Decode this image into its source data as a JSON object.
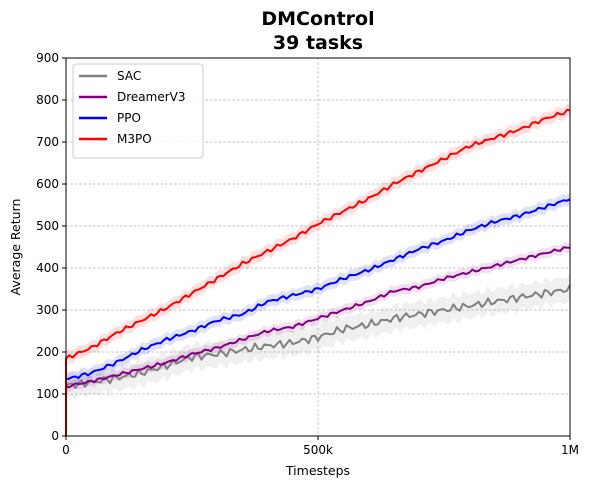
{
  "chart_data": {
    "type": "line",
    "title": "DMControl",
    "subtitle": "39 tasks",
    "xlabel": "Timesteps",
    "ylabel": "Average Return",
    "xlim": [
      0,
      1000000
    ],
    "ylim": [
      0,
      900
    ],
    "x_ticks": [
      {
        "value": 0,
        "label": "0"
      },
      {
        "value": 500000,
        "label": "500k"
      },
      {
        "value": 1000000,
        "label": "1M"
      }
    ],
    "y_ticks": [
      0,
      100,
      200,
      300,
      400,
      500,
      600,
      700,
      800,
      900
    ],
    "grid": true,
    "legend_position": "top-left",
    "x": [
      0,
      50000,
      100000,
      150000,
      200000,
      250000,
      300000,
      350000,
      400000,
      450000,
      500000,
      550000,
      600000,
      650000,
      700000,
      750000,
      800000,
      850000,
      900000,
      950000,
      1000000
    ],
    "series": [
      {
        "name": "SAC",
        "color": "#808080",
        "band": 30,
        "values": [
          120,
          128,
          138,
          150,
          168,
          188,
          195,
          205,
          215,
          222,
          235,
          255,
          265,
          280,
          290,
          300,
          310,
          320,
          330,
          340,
          350
        ]
      },
      {
        "name": "DreamerV3",
        "color": "#800080",
        "band": 12,
        "values": [
          118,
          130,
          145,
          160,
          175,
          195,
          210,
          230,
          250,
          260,
          280,
          300,
          320,
          345,
          355,
          375,
          390,
          405,
          420,
          435,
          450
        ]
      },
      {
        "name": "PPO",
        "color": "#0000ff",
        "band": 14,
        "values": [
          135,
          150,
          175,
          205,
          230,
          250,
          275,
          290,
          320,
          335,
          350,
          375,
          395,
          420,
          445,
          465,
          490,
          510,
          525,
          545,
          565
        ]
      },
      {
        "name": "M3PO",
        "color": "#ff0000",
        "band": 15,
        "values": [
          185,
          210,
          245,
          275,
          305,
          340,
          375,
          410,
          440,
          470,
          505,
          535,
          565,
          600,
          630,
          660,
          690,
          710,
          730,
          755,
          775
        ]
      }
    ]
  }
}
